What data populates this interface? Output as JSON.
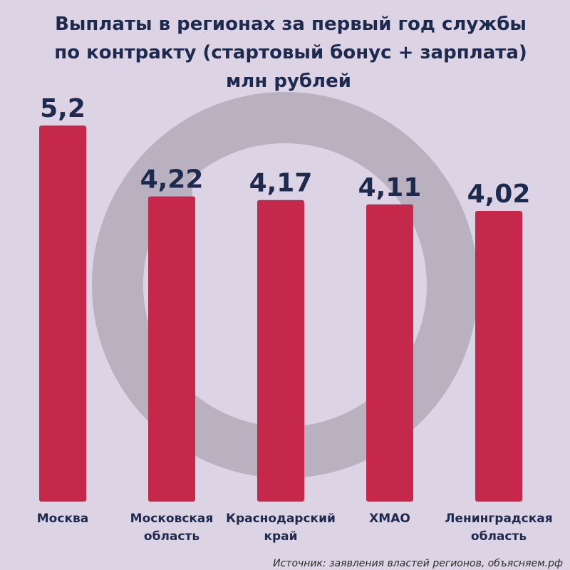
{
  "chart_data": {
    "type": "bar",
    "title_lines": [
      "Выплаты в регионах за первый год службы",
      "по контракту (стартовый бонус + зарплата)",
      "млн рублей"
    ],
    "categories": [
      [
        "Москва"
      ],
      [
        "Московская",
        "область"
      ],
      [
        "Краснодарский",
        "край"
      ],
      [
        "ХМАО"
      ],
      [
        "Ленинградская",
        "область"
      ]
    ],
    "values": [
      5.2,
      4.22,
      4.17,
      4.11,
      4.02
    ],
    "value_labels": [
      "5,2",
      "4,22",
      "4,17",
      "4,11",
      "4,02"
    ],
    "xlabel": "",
    "ylabel": "",
    "axis_visible": false,
    "grid": false,
    "bar_color": "#c5284a",
    "source": "Источник: заявления властей регионов, объясняем.рф"
  },
  "colors": {
    "background": "#dcd3e4",
    "text": "#1d2a4e",
    "watermark": "#b9b1c0"
  }
}
